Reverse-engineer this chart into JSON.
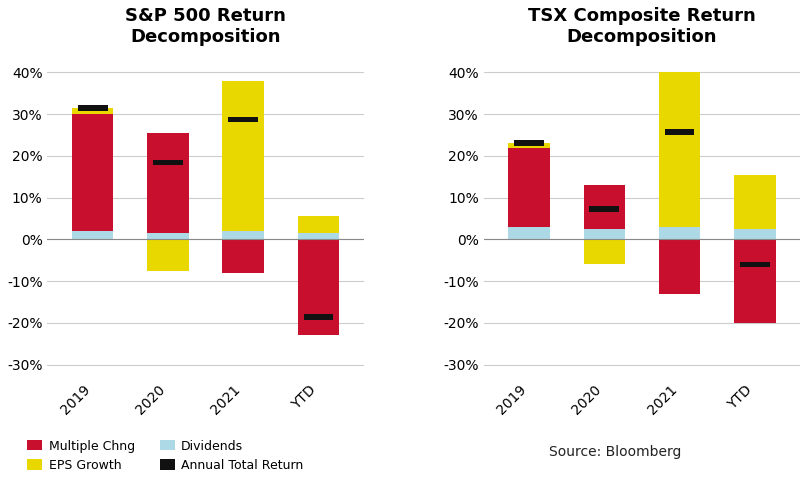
{
  "sp500": {
    "title": "S&P 500 Return\nDecomposition",
    "categories": [
      "2019",
      "2020",
      "2021",
      "YTD"
    ],
    "multiple_chng": [
      28.0,
      24.0,
      -8.0,
      -23.0
    ],
    "dividends": [
      2.0,
      1.5,
      2.0,
      1.5
    ],
    "eps_growth": [
      1.5,
      -7.5,
      36.0,
      4.0
    ],
    "total_return": [
      31.5,
      18.4,
      28.7,
      -18.5
    ]
  },
  "tsx": {
    "title": "TSX Composite Return\nDecomposition",
    "categories": [
      "2019",
      "2020",
      "2021",
      "YTD"
    ],
    "multiple_chng": [
      19.0,
      10.5,
      -13.0,
      -20.0
    ],
    "dividends": [
      3.0,
      2.5,
      3.0,
      2.5
    ],
    "eps_growth": [
      1.0,
      -5.8,
      37.0,
      13.0
    ],
    "total_return": [
      23.0,
      7.2,
      25.7,
      -6.0
    ]
  },
  "colors": {
    "multiple_chng": "#C8102E",
    "eps_growth": "#E8D800",
    "dividends": "#ADD8E6",
    "total_return": "#111111"
  },
  "ylim": [
    -0.32,
    0.44
  ],
  "yticks": [
    -0.3,
    -0.2,
    -0.1,
    0.0,
    0.1,
    0.2,
    0.3,
    0.4
  ],
  "background_color": "#ffffff",
  "grid_color": "#cccccc",
  "source_text": "Source: Bloomberg",
  "bar_width": 0.55,
  "legend": {
    "multiple_chng": "Multiple Chng",
    "eps_growth": "EPS Growth",
    "dividends": "Dividends",
    "total_return": "Annual Total Return"
  }
}
